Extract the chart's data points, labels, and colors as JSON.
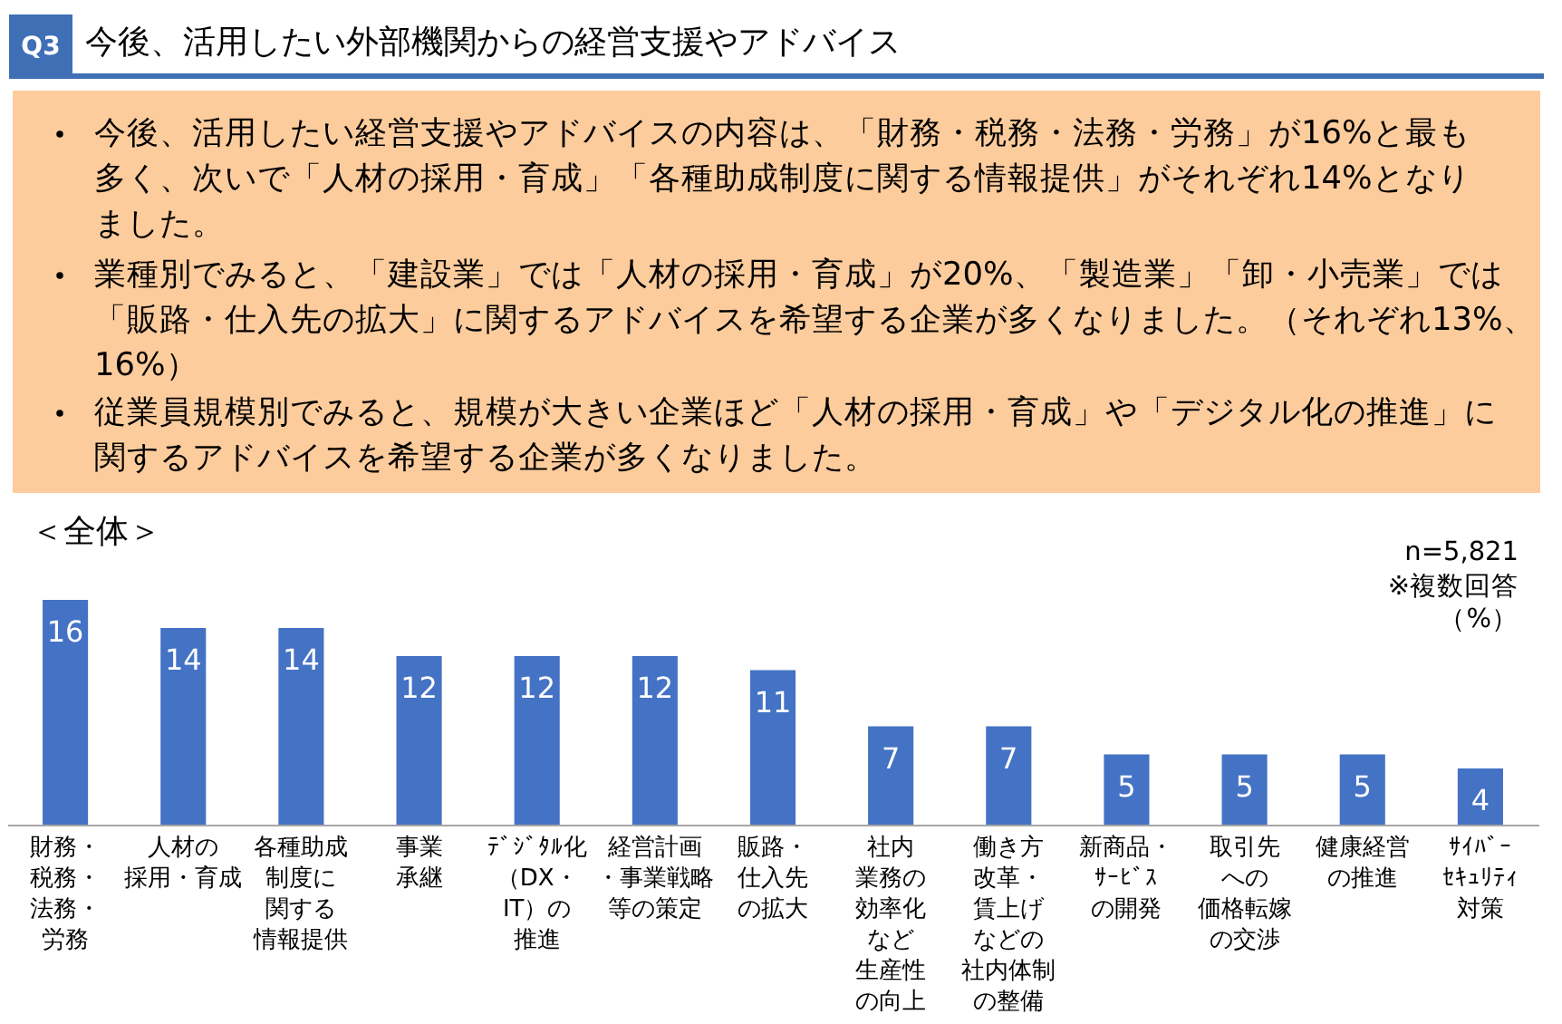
{
  "chart_data": {
    "type": "bar",
    "title": "今後、活用したい外部機関からの経営支援やアドバイス",
    "subtitle": "＜全体＞",
    "categories": [
      "財務・税務・法務・労務",
      "人材の採用・育成",
      "各種助成制度に関する情報提供",
      "事業承継",
      "ﾃﾞｼﾞﾀﾙ化（DX・IT）の推進",
      "経営計画・事業戦略等の策定",
      "販路・仕入先の拡大",
      "社内業務の効率化など生産性の向上",
      "働き方改革・賃上げなどの社内体制の整備",
      "新商品・ｻｰﾋﾞｽの開発",
      "取引先への価格転嫁の交渉",
      "健康経営の推進",
      "ｻｲﾊﾞｰｾｷｭﾘﾃｨ対策"
    ],
    "values": [
      16,
      14,
      14,
      12,
      12,
      12,
      11,
      7,
      7,
      5,
      5,
      5,
      4
    ],
    "color": "#4472c4",
    "data_labels": true,
    "annotations": [
      "Q3",
      "今後、活用したい経営支援やアドバイスの内容は、「財務・税務・法務・労務」が16%と最も多く、次いで「人材の採用・育成」「各種助成制度に関する情報提供」がそれぞれ14%となりました。",
      "業種別でみると、「建設業」では「人材の採用・育成」が20%、「製造業」「卸・小売業」では「販路・仕入先の拡大」に関するアドバイスを希望する企業が多くなりました。（それぞれ13%、16%）",
      "従業員規模別でみると、規模が大きい企業ほど「人材の採用・育成」や「デジタル化の推進」に関するアドバイスを希望する企業が多くなりました。",
      "n=5,821",
      "※複数回答",
      "（%）"
    ]
  }
}
